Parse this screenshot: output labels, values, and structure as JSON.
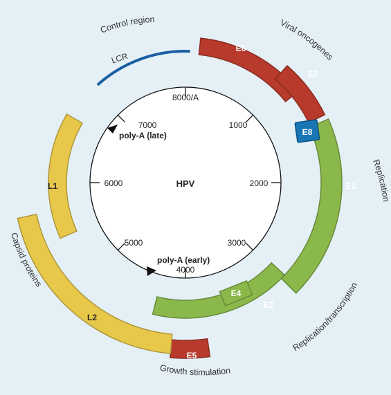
{
  "center_label": "HPV",
  "ticks": [
    {
      "label": "8000/A"
    },
    {
      "label": "1000"
    },
    {
      "label": "2000"
    },
    {
      "label": "3000"
    },
    {
      "label": "4000"
    },
    {
      "label": "5000"
    },
    {
      "label": "6000"
    },
    {
      "label": "7000"
    }
  ],
  "poly_a": {
    "late": "poly-A (late)",
    "early": "poly-A (early)"
  },
  "lcr": {
    "label": "LCR",
    "color": "#1a5fa3"
  },
  "genes": [
    {
      "name": "E6",
      "color": "#b83a2c"
    },
    {
      "name": "E7",
      "color": "#b83a2c"
    },
    {
      "name": "E8",
      "color": "#1976b5"
    },
    {
      "name": "E1",
      "color": "#8ab84a"
    },
    {
      "name": "E2",
      "color": "#8ab84a"
    },
    {
      "name": "E4",
      "color": "#8ab84a"
    },
    {
      "name": "E5",
      "color": "#b83a2c"
    },
    {
      "name": "L2",
      "color": "#e8c84a"
    },
    {
      "name": "L1",
      "color": "#e8c84a"
    }
  ],
  "function_labels": {
    "control_region": "Control region",
    "viral_oncogenes": "Viral oncogenes",
    "replication": "Replication",
    "replication_transcription": "Replication/transcription",
    "growth_stimulation": "Growth stimulation",
    "capsid_proteins": "Capsid proteins"
  },
  "colors": {
    "background": "#e4f0f6",
    "red": "#b83a2c",
    "green": "#8ab84a",
    "yellow": "#e8c84a",
    "blue": "#1976b5",
    "lcr": "#1a5fa3"
  }
}
